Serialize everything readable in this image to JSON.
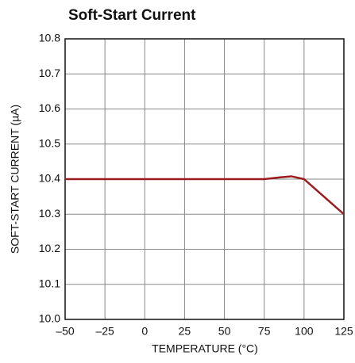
{
  "chart_data": {
    "type": "line",
    "title": "Soft-Start Current",
    "xlabel": "TEMPERATURE (°C)",
    "ylabel": "SOFT-START CURRENT (µA)",
    "x": [
      -50,
      -25,
      0,
      25,
      50,
      75,
      85,
      92,
      100,
      110,
      125
    ],
    "series": [
      {
        "name": "Soft-Start Current",
        "color": "#9b1b1e",
        "values": [
          10.4,
          10.4,
          10.4,
          10.4,
          10.4,
          10.4,
          10.405,
          10.408,
          10.4,
          10.36,
          10.3
        ]
      }
    ],
    "xlim": [
      -50,
      125
    ],
    "xticks": [
      {
        "value": -50,
        "label": "–50"
      },
      {
        "value": -25,
        "label": "–25"
      },
      0,
      25,
      50,
      75,
      100,
      125
    ],
    "ylim": [
      10.0,
      10.8
    ],
    "yticks": [
      {
        "value": 10.0,
        "label": "10.0"
      },
      10.1,
      10.2,
      10.3,
      10.4,
      10.5,
      10.6,
      10.7,
      10.8
    ],
    "grid": true
  }
}
